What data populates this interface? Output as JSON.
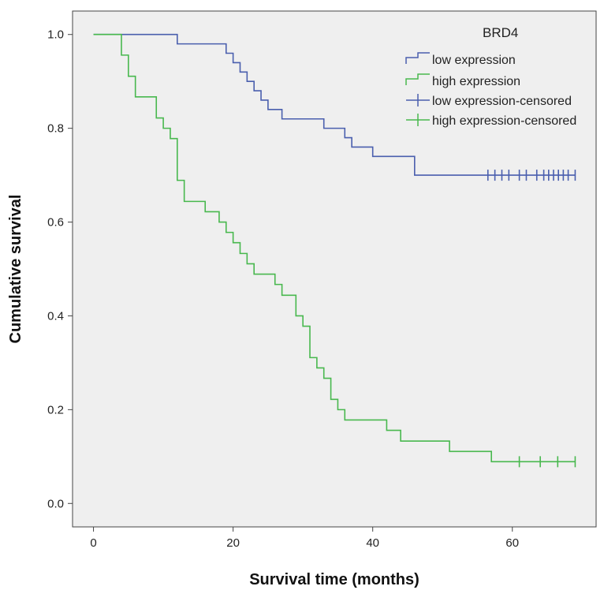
{
  "chart_data": {
    "type": "line",
    "step": true,
    "xlabel": "Survival time (months)",
    "ylabel": "Cumulative survival",
    "xlim": [
      -3,
      72
    ],
    "ylim": [
      -0.05,
      1.05
    ],
    "xticks": [
      0,
      20,
      40,
      60
    ],
    "yticks": [
      0.0,
      0.2,
      0.4,
      0.6,
      0.8,
      1.0
    ],
    "ytick_labels": [
      "0.0",
      "0.2",
      "0.4",
      "0.6",
      "0.8",
      "1.0"
    ],
    "grid": false,
    "background": "#efefef",
    "legend": {
      "title": "BRD4",
      "placement": "top-right",
      "entries": [
        "low expression",
        "high expression",
        "low expression-censored",
        "high expression-censored"
      ]
    },
    "series": [
      {
        "name": "low expression",
        "color": "#4a5fae",
        "steps": [
          [
            0,
            1.0
          ],
          [
            12,
            0.98
          ],
          [
            19,
            0.96
          ],
          [
            20,
            0.94
          ],
          [
            21,
            0.92
          ],
          [
            22,
            0.9
          ],
          [
            23,
            0.88
          ],
          [
            24,
            0.86
          ],
          [
            25,
            0.84
          ],
          [
            27,
            0.82
          ],
          [
            33,
            0.8
          ],
          [
            36,
            0.78
          ],
          [
            37,
            0.76
          ],
          [
            40,
            0.74
          ],
          [
            46,
            0.7
          ]
        ],
        "end_x": 69,
        "censored": [
          56.5,
          57.5,
          58.5,
          59.5,
          61,
          62,
          63.5,
          64.5,
          65.2,
          65.9,
          66.6,
          67.3,
          68,
          69
        ]
      },
      {
        "name": "high expression",
        "color": "#48b84e",
        "steps": [
          [
            0,
            1.0
          ],
          [
            4,
            0.956
          ],
          [
            5,
            0.911
          ],
          [
            6,
            0.867
          ],
          [
            9,
            0.822
          ],
          [
            10,
            0.8
          ],
          [
            11,
            0.778
          ],
          [
            12,
            0.689
          ],
          [
            13,
            0.644
          ],
          [
            16,
            0.622
          ],
          [
            18,
            0.6
          ],
          [
            19,
            0.578
          ],
          [
            20,
            0.556
          ],
          [
            21,
            0.533
          ],
          [
            22,
            0.511
          ],
          [
            23,
            0.489
          ],
          [
            26,
            0.467
          ],
          [
            27,
            0.444
          ],
          [
            29,
            0.4
          ],
          [
            30,
            0.378
          ],
          [
            31,
            0.311
          ],
          [
            32,
            0.289
          ],
          [
            33,
            0.267
          ],
          [
            34,
            0.222
          ],
          [
            35,
            0.2
          ],
          [
            36,
            0.178
          ],
          [
            42,
            0.156
          ],
          [
            44,
            0.133
          ],
          [
            51,
            0.111
          ],
          [
            57,
            0.089
          ]
        ],
        "end_x": 69,
        "censored": [
          61,
          64,
          66.5,
          69
        ]
      }
    ]
  }
}
